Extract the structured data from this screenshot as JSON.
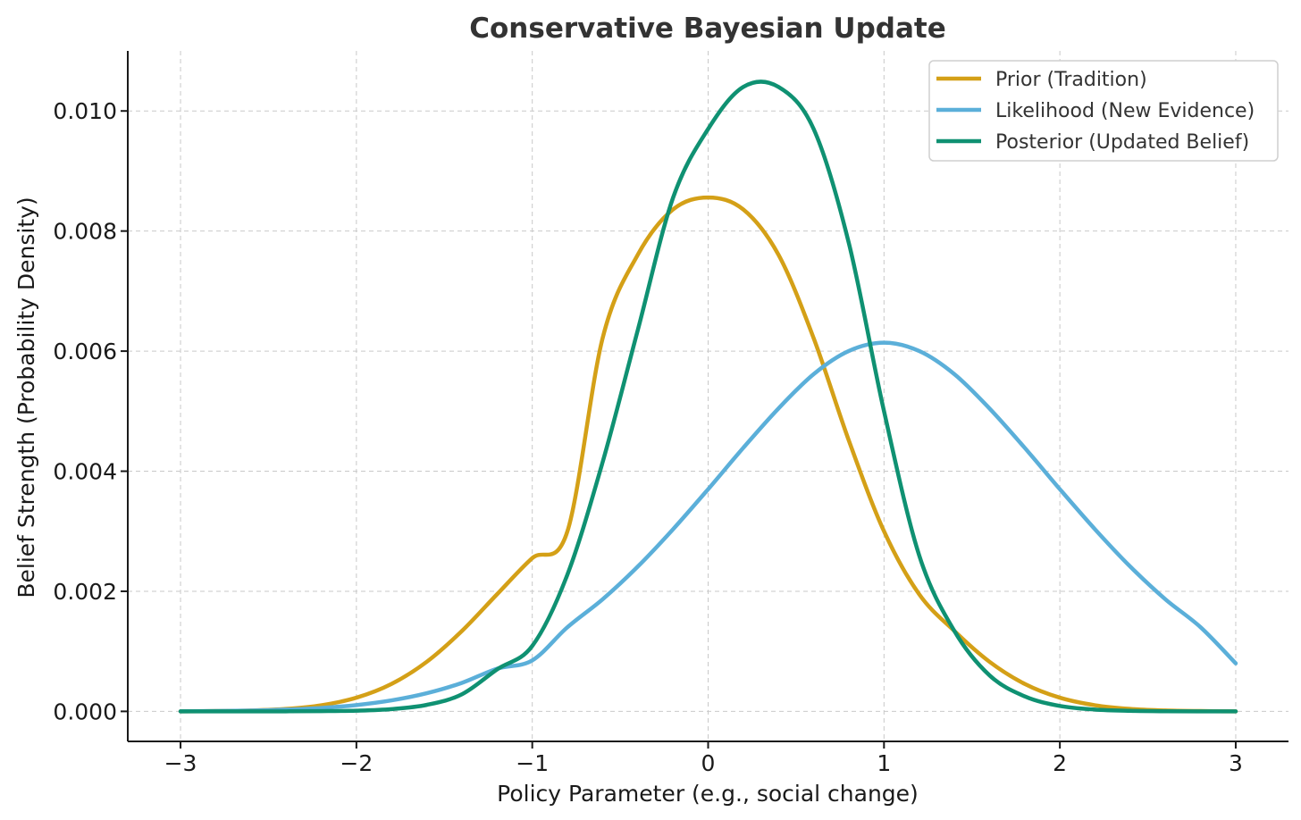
{
  "chart_data": {
    "type": "line",
    "title": "Conservative Bayesian Update",
    "xlabel": "Policy Parameter (e.g., social change)",
    "ylabel": "Belief Strength (Probability Density)",
    "xlim": [
      -3.3,
      3.3
    ],
    "ylim": [
      -0.0005,
      0.011
    ],
    "xticks": [
      -3,
      -2,
      -1,
      0,
      1,
      2,
      3
    ],
    "xtick_labels": [
      "−3",
      "−2",
      "−1",
      "0",
      "1",
      "2",
      "3"
    ],
    "yticks": [
      0,
      0.002,
      0.004,
      0.006,
      0.008,
      0.01
    ],
    "ytick_labels": [
      "0.000",
      "0.002",
      "0.004",
      "0.006",
      "0.008",
      "0.010"
    ],
    "grid": true,
    "legend_position": "top-right",
    "x": [
      -3.0,
      -2.8,
      -2.6,
      -2.4,
      -2.2,
      -2.0,
      -1.8,
      -1.6,
      -1.4,
      -1.2,
      -1.0,
      -0.8,
      -0.6,
      -0.4,
      -0.2,
      0.0,
      0.2,
      0.4,
      0.6,
      0.8,
      1.0,
      1.2,
      1.4,
      1.6,
      1.8,
      2.0,
      2.2,
      2.4,
      2.6,
      2.8,
      3.0
    ],
    "series": [
      {
        "name": "Prior (Tradition)",
        "color": "#D4A017",
        "values": [
          0.0,
          5e-06,
          1.5e-05,
          4.1e-05,
          0.000102,
          0.000228,
          0.000458,
          0.000826,
          0.001339,
          0.001951,
          0.002552,
          0.003,
          0.006216,
          0.007605,
          0.008359,
          0.008559,
          0.008359,
          0.007605,
          0.006216,
          0.004512,
          0.003,
          0.001951,
          0.001339,
          0.000826,
          0.000458,
          0.000228,
          0.000102,
          4.1e-05,
          1.5e-05,
          5e-06,
          0.0
        ]
      },
      {
        "name": "Likelihood (New Evidence)",
        "color": "#5BAFD9",
        "values": [
          0.0,
          6e-06,
          1.4e-05,
          3e-05,
          5.7e-05,
          0.000105,
          0.000183,
          0.000302,
          0.000475,
          0.000711,
          0.00085,
          0.001402,
          0.001867,
          0.002412,
          0.003032,
          0.0037,
          0.00439,
          0.005045,
          0.005617,
          0.006002,
          0.00614,
          0.006002,
          0.005617,
          0.005045,
          0.00439,
          0.0037,
          0.003032,
          0.002412,
          0.001867,
          0.001402,
          0.0008
        ]
      },
      {
        "name": "Posterior (Updated Belief)",
        "color": "#0F9172",
        "values": [
          0.0,
          0.0,
          0.0,
          1e-06,
          4e-06,
          1.2e-05,
          3.8e-05,
          0.000108,
          0.000285,
          0.0007,
          0.00109,
          0.00228,
          0.00415,
          0.00635,
          0.00855,
          0.0097,
          0.0104,
          0.0104,
          0.0097,
          0.0078,
          0.005,
          0.0026,
          0.00134,
          0.0006,
          0.00025,
          9e-05,
          3e-05,
          9e-06,
          2e-06,
          0.0,
          0.0
        ]
      }
    ]
  }
}
